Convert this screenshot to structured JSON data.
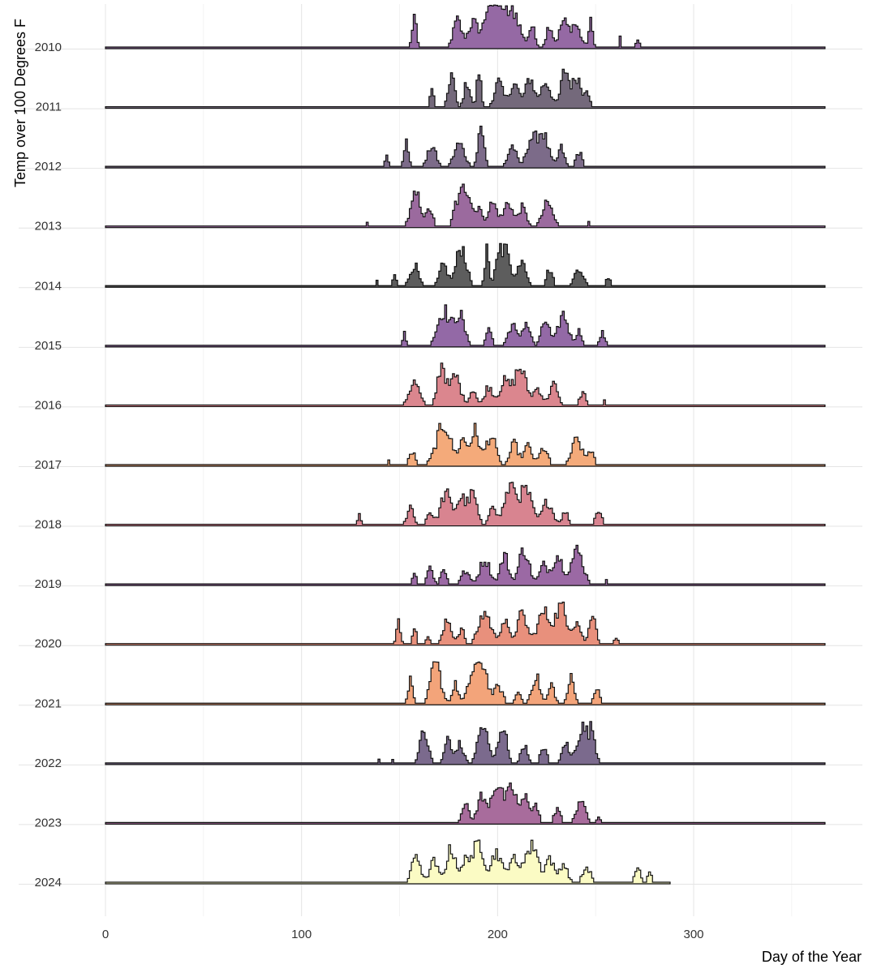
{
  "chart_data": {
    "type": "area",
    "subtype": "ridgeline-step",
    "xlabel": "Day of the Year",
    "ylabel": "Temp over  100  Degrees F",
    "xlim": [
      0,
      366
    ],
    "xticks": [
      0,
      100,
      200,
      300
    ],
    "grid": true,
    "legend": "none",
    "series": [
      {
        "name": "2010",
        "color": "#9569a4",
        "peaks": [
          [
            157,
            1,
            0.75
          ],
          [
            179,
            2,
            0.65
          ],
          [
            187,
            2.5,
            0.6
          ],
          [
            196,
            3,
            0.9
          ],
          [
            200,
            3.5,
            1.0
          ],
          [
            208,
            3,
            0.8
          ],
          [
            217,
            1.5,
            0.5
          ],
          [
            226,
            1.5,
            0.55
          ],
          [
            233,
            2,
            0.6
          ],
          [
            239,
            2.5,
            0.55
          ],
          [
            247,
            1,
            0.6
          ],
          [
            262,
            0.5,
            0.25
          ],
          [
            271,
            0.8,
            0.18
          ]
        ]
      },
      {
        "name": "2011",
        "color": "#74697b",
        "peaks": [
          [
            166,
            0.8,
            0.5
          ],
          [
            176,
            1.5,
            0.8
          ],
          [
            184,
            1.5,
            0.6
          ],
          [
            190,
            1,
            0.9
          ],
          [
            200,
            2,
            0.6
          ],
          [
            208,
            2.5,
            0.55
          ],
          [
            216,
            2,
            0.7
          ],
          [
            224,
            2.5,
            0.6
          ],
          [
            234,
            2,
            0.9
          ],
          [
            240,
            2,
            0.75
          ],
          [
            245,
            1.2,
            0.45
          ]
        ]
      },
      {
        "name": "2012",
        "color": "#7c6b89",
        "peaks": [
          [
            143,
            0.8,
            0.25
          ],
          [
            153,
            1.2,
            0.55
          ],
          [
            166,
            2,
            0.5
          ],
          [
            180,
            2.5,
            0.55
          ],
          [
            191,
            1.5,
            1.0
          ],
          [
            207,
            2,
            0.5
          ],
          [
            216,
            2,
            0.55
          ],
          [
            222,
            3,
            0.85
          ],
          [
            232,
            1.5,
            0.45
          ],
          [
            241,
            1.5,
            0.35
          ]
        ]
      },
      {
        "name": "2013",
        "color": "#9b6a9e",
        "peaks": [
          [
            133,
            0.5,
            0.12
          ],
          [
            158,
            2.5,
            0.75
          ],
          [
            165,
            1.5,
            0.4
          ],
          [
            178,
            1.2,
            0.3
          ],
          [
            183,
            3,
            1.0
          ],
          [
            190,
            1.2,
            0.45
          ],
          [
            197,
            2.5,
            0.55
          ],
          [
            205,
            2,
            0.6
          ],
          [
            212,
            2,
            0.45
          ],
          [
            225,
            2.5,
            0.55
          ],
          [
            246,
            0.6,
            0.1
          ]
        ]
      },
      {
        "name": "2014",
        "color": "#5d5d5d",
        "peaks": [
          [
            138,
            0.5,
            0.15
          ],
          [
            147,
            0.8,
            0.35
          ],
          [
            157,
            2,
            0.5
          ],
          [
            172,
            2,
            0.5
          ],
          [
            181,
            2.5,
            0.95
          ],
          [
            194,
            1,
            0.9
          ],
          [
            200,
            1.5,
            0.8
          ],
          [
            204,
            2,
            1.0
          ],
          [
            212,
            2,
            0.7
          ],
          [
            226,
            1.5,
            0.4
          ],
          [
            241,
            2,
            0.45
          ],
          [
            256,
            1.2,
            0.2
          ]
        ]
      },
      {
        "name": "2015",
        "color": "#9369a6",
        "peaks": [
          [
            152,
            0.8,
            0.3
          ],
          [
            172,
            3,
            0.85
          ],
          [
            180,
            2.5,
            0.75
          ],
          [
            195,
            1.5,
            0.4
          ],
          [
            207,
            2,
            0.5
          ],
          [
            214,
            2,
            0.55
          ],
          [
            224,
            2,
            0.6
          ],
          [
            233,
            2.5,
            0.75
          ],
          [
            241,
            1.5,
            0.35
          ],
          [
            253,
            1.2,
            0.3
          ]
        ]
      },
      {
        "name": "2016",
        "color": "#db868e",
        "peaks": [
          [
            157,
            2.5,
            0.55
          ],
          [
            171,
            2,
            1.0
          ],
          [
            178,
            2.5,
            0.7
          ],
          [
            187,
            1.5,
            0.4
          ],
          [
            195,
            2,
            0.45
          ],
          [
            203,
            2.5,
            0.55
          ],
          [
            211,
            3,
            0.9
          ],
          [
            220,
            2,
            0.4
          ],
          [
            228,
            2,
            0.5
          ],
          [
            243,
            1.5,
            0.3
          ],
          [
            254,
            0.8,
            0.12
          ]
        ]
      },
      {
        "name": "2017",
        "color": "#f4aa7a",
        "peaks": [
          [
            144,
            0.5,
            0.12
          ],
          [
            156,
            1.5,
            0.3
          ],
          [
            172,
            3.5,
            1.0
          ],
          [
            182,
            2,
            0.6
          ],
          [
            188,
            2,
            0.85
          ],
          [
            196,
            2.5,
            0.7
          ],
          [
            208,
            2,
            0.5
          ],
          [
            215,
            2,
            0.45
          ],
          [
            223,
            2,
            0.4
          ],
          [
            240,
            2.5,
            0.6
          ],
          [
            247,
            1.5,
            0.35
          ]
        ]
      },
      {
        "name": "2018",
        "color": "#d88490",
        "peaks": [
          [
            129,
            0.6,
            0.3
          ],
          [
            155,
            1.5,
            0.45
          ],
          [
            165,
            1.5,
            0.3
          ],
          [
            173,
            2.5,
            0.75
          ],
          [
            181,
            2.5,
            0.65
          ],
          [
            187,
            2,
            0.7
          ],
          [
            197,
            1.5,
            0.55
          ],
          [
            206,
            3,
            0.9
          ],
          [
            214,
            3,
            0.8
          ],
          [
            225,
            2.5,
            0.55
          ],
          [
            234,
            1.5,
            0.3
          ],
          [
            251,
            1.5,
            0.35
          ]
        ]
      },
      {
        "name": "2019",
        "color": "#9b69a4",
        "peaks": [
          [
            157,
            1,
            0.3
          ],
          [
            165,
            1.5,
            0.4
          ],
          [
            172,
            1.5,
            0.35
          ],
          [
            183,
            2,
            0.3
          ],
          [
            193,
            2.5,
            0.6
          ],
          [
            203,
            2,
            0.7
          ],
          [
            213,
            2.5,
            0.85
          ],
          [
            223,
            2,
            0.45
          ],
          [
            230,
            2.5,
            0.7
          ],
          [
            240,
            3,
            0.8
          ],
          [
            255,
            0.8,
            0.12
          ]
        ]
      },
      {
        "name": "2020",
        "color": "#e8907c",
        "peaks": [
          [
            149,
            1,
            0.5
          ],
          [
            157,
            1,
            0.4
          ],
          [
            164,
            0.8,
            0.2
          ],
          [
            174,
            2,
            0.55
          ],
          [
            181,
            1.5,
            0.35
          ],
          [
            193,
            3,
            0.75
          ],
          [
            203,
            2,
            0.55
          ],
          [
            212,
            2.5,
            0.7
          ],
          [
            223,
            3,
            0.75
          ],
          [
            232,
            3,
            0.9
          ],
          [
            240,
            2,
            0.5
          ],
          [
            248,
            1.5,
            0.85
          ],
          [
            260,
            0.8,
            0.15
          ]
        ]
      },
      {
        "name": "2021",
        "color": "#f3a47a",
        "peaks": [
          [
            155,
            1.2,
            0.55
          ],
          [
            168,
            2.5,
            0.95
          ],
          [
            178,
            1.5,
            0.45
          ],
          [
            187,
            2.5,
            0.7
          ],
          [
            192,
            2.5,
            0.9
          ],
          [
            200,
            2,
            0.4
          ],
          [
            210,
            1.5,
            0.25
          ],
          [
            219,
            2,
            0.65
          ],
          [
            227,
            1.5,
            0.45
          ],
          [
            237,
            1.5,
            0.6
          ],
          [
            250,
            1.5,
            0.35
          ]
        ]
      },
      {
        "name": "2022",
        "color": "#7b6a8d",
        "peaks": [
          [
            139,
            0.5,
            0.12
          ],
          [
            146,
            0.5,
            0.08
          ],
          [
            162,
            2,
            0.75
          ],
          [
            174,
            1.5,
            0.6
          ],
          [
            180,
            2,
            0.45
          ],
          [
            192,
            2.5,
            0.9
          ],
          [
            202,
            2,
            0.95
          ],
          [
            213,
            1.5,
            0.45
          ],
          [
            223,
            1.5,
            0.4
          ],
          [
            234,
            1.5,
            0.5
          ],
          [
            243,
            3,
            0.85
          ],
          [
            248,
            1.5,
            0.6
          ]
        ]
      },
      {
        "name": "2023",
        "color": "#a86c9c",
        "peaks": [
          [
            183,
            1.5,
            0.55
          ],
          [
            191,
            2,
            0.6
          ],
          [
            199,
            3,
            0.95
          ],
          [
            207,
            2.5,
            0.8
          ],
          [
            214,
            2,
            0.6
          ],
          [
            219,
            1.5,
            0.4
          ],
          [
            230,
            1.5,
            0.35
          ],
          [
            242,
            2,
            0.6
          ],
          [
            251,
            0.8,
            0.15
          ]
        ]
      },
      {
        "name": "2024",
        "color": "#fbfbc4",
        "peaks": [
          [
            158,
            2,
            0.7
          ],
          [
            167,
            2,
            0.5
          ],
          [
            176,
            2.5,
            0.8
          ],
          [
            184,
            2,
            0.6
          ],
          [
            190,
            2.5,
            1.0
          ],
          [
            199,
            2.5,
            0.75
          ],
          [
            207,
            2,
            0.6
          ],
          [
            213,
            2,
            0.5
          ],
          [
            218,
            2.5,
            0.85
          ],
          [
            226,
            2,
            0.6
          ],
          [
            233,
            2,
            0.45
          ],
          [
            245,
            2,
            0.35
          ],
          [
            271,
            1.5,
            0.3
          ],
          [
            277,
            1,
            0.25
          ]
        ],
        "lastDay": 287
      }
    ]
  }
}
